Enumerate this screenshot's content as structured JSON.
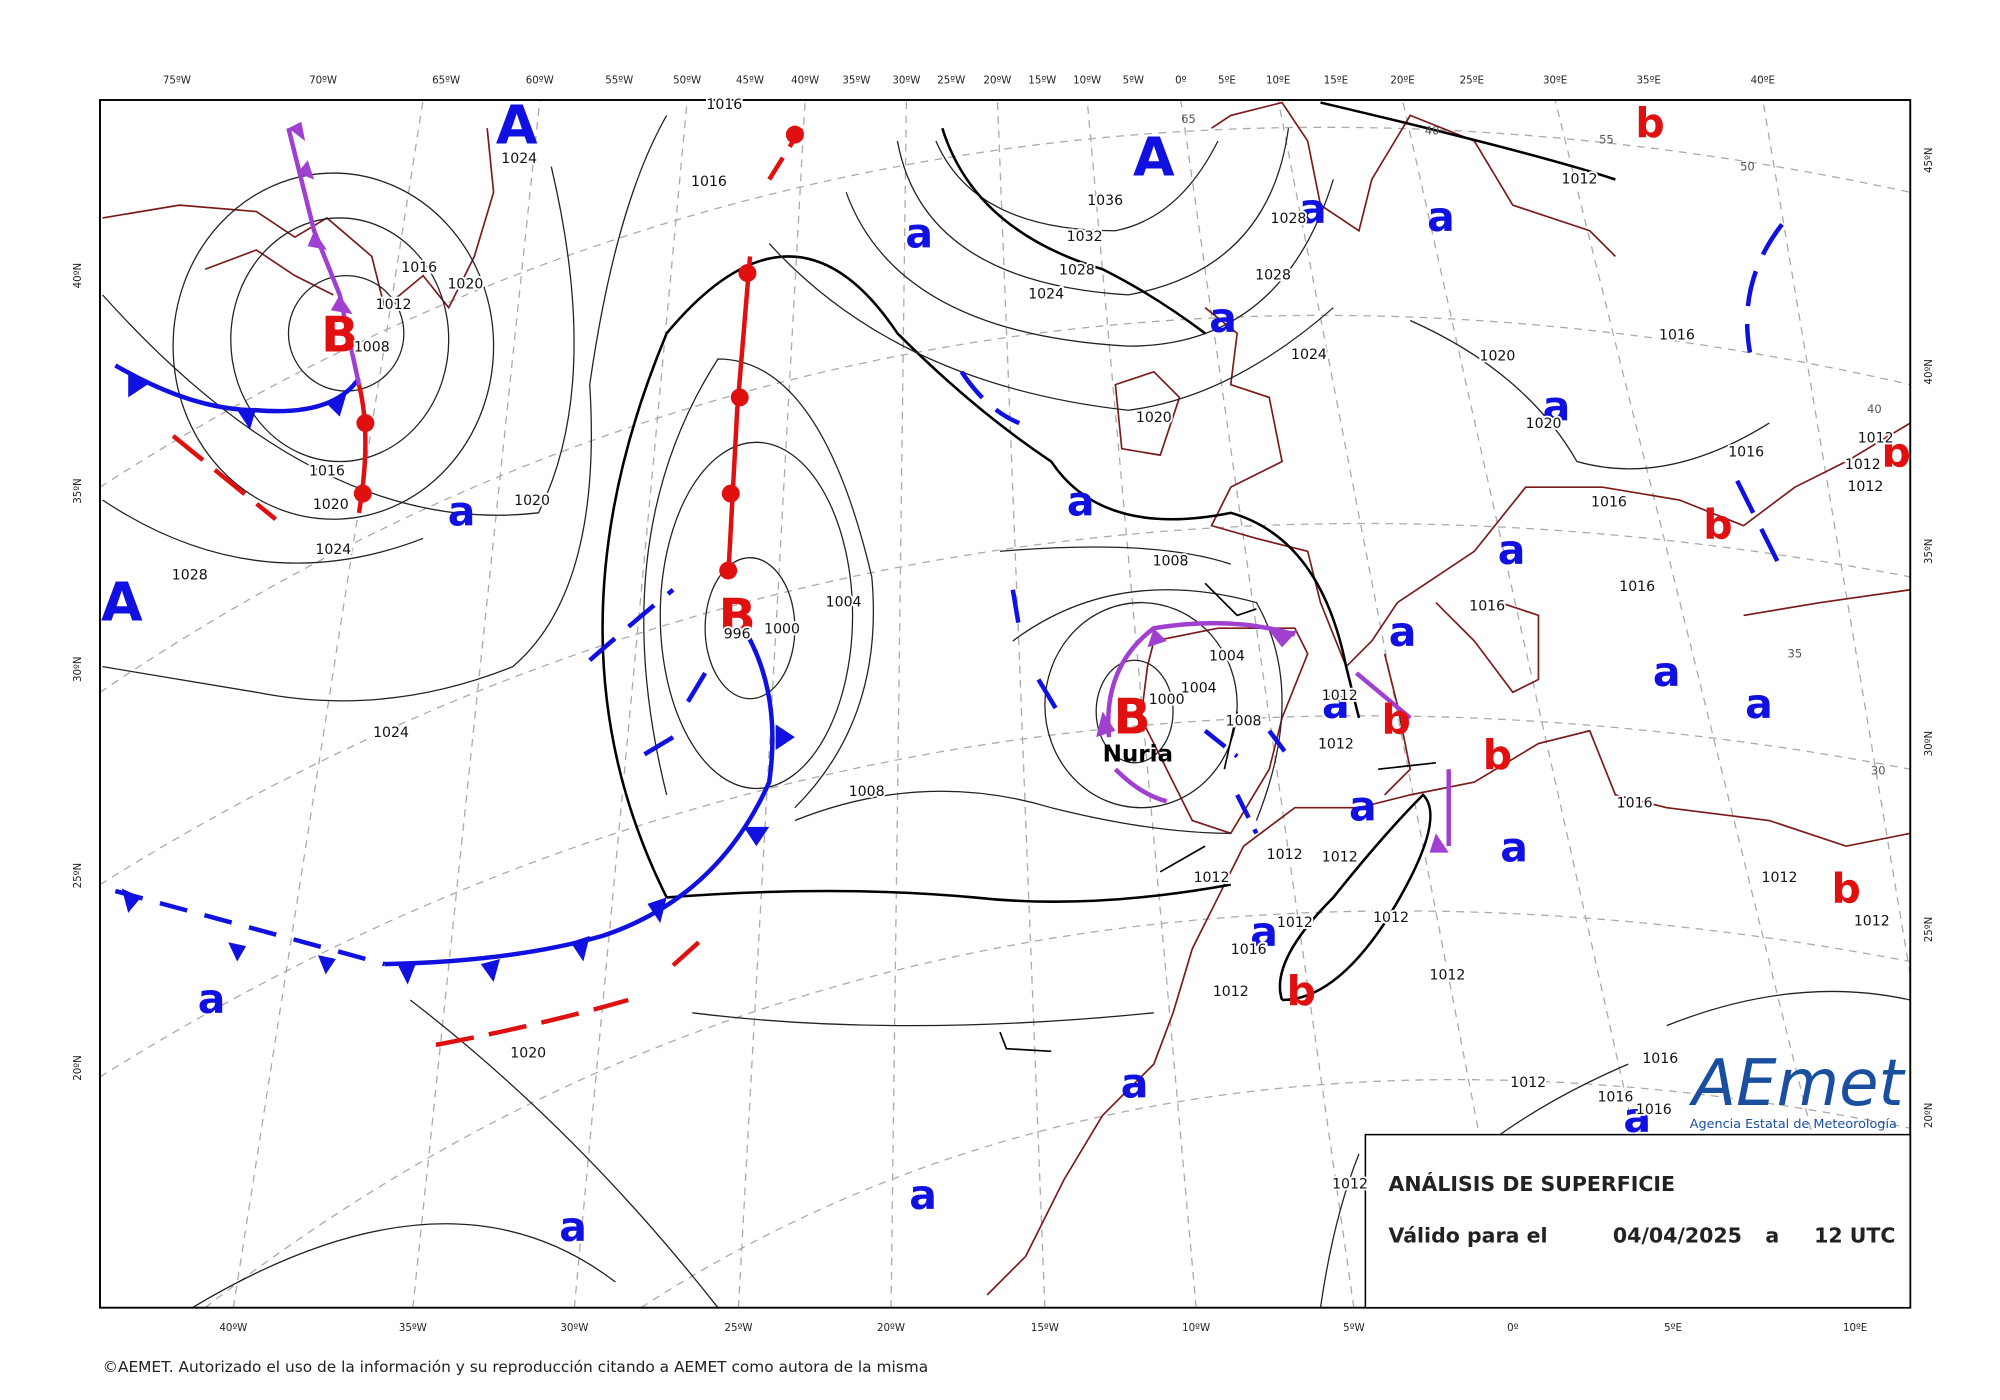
{
  "map": {
    "lon_top": [
      "75ºW",
      "70ºW",
      "65ºW",
      "60ºW",
      "55ºW",
      "50ºW",
      "45ºW",
      "40ºW",
      "35ºW",
      "30ºW",
      "25ºW",
      "20ºW",
      "15ºW",
      "10ºW",
      "5ºW",
      "0º",
      "5ºE",
      "10ºE",
      "15ºE",
      "20ºE",
      "25ºE",
      "30ºE",
      "35ºE",
      "40ºE"
    ],
    "lon_bottom": [
      "40ºW",
      "35ºW",
      "30ºW",
      "25ºW",
      "20ºW",
      "15ºW",
      "10ºW",
      "5ºW",
      "0º",
      "5ºE",
      "10ºE"
    ],
    "lat_left": [
      "40ºN",
      "35ºN",
      "30ºN",
      "25ºN",
      "20ºN"
    ],
    "lat_right": [
      "45ºN",
      "40ºN",
      "35ºN",
      "30ºN",
      "25ºN",
      "20ºN"
    ],
    "highs": [
      "A",
      "A",
      "A"
    ],
    "lows": [
      "B",
      "B",
      "B"
    ],
    "relative_highs": [
      "a",
      "a",
      "a",
      "a",
      "a",
      "a",
      "a",
      "a",
      "a",
      "a",
      "a",
      "a",
      "a",
      "a",
      "a",
      "a",
      "a",
      "a",
      "a",
      "a"
    ],
    "relative_lows": [
      "b",
      "b",
      "b",
      "b",
      "b",
      "b",
      "b"
    ],
    "storm_name": "Nuria",
    "isobar_labels": [
      1016,
      1016,
      1024,
      1016,
      1020,
      1012,
      1008,
      1016,
      1020,
      1024,
      1028,
      1020,
      1024,
      1004,
      1000,
      996,
      1008,
      1020,
      1036,
      1032,
      1028,
      1024,
      1028,
      1028,
      1024,
      1020,
      1012,
      1020,
      1020,
      1016,
      1008,
      1004,
      1004,
      1000,
      1008,
      1012,
      1012,
      1012,
      1012,
      1012,
      1012,
      1016,
      1012,
      1012,
      1012,
      1016,
      1016,
      1016,
      1016,
      1012,
      1012,
      1012,
      1016,
      1012,
      1012,
      1016,
      1012,
      1016,
      1016,
      1012
    ],
    "thickness_labels": [
      65,
      55,
      50,
      40,
      40,
      35,
      30
    ]
  },
  "legend_box": {
    "title": "ANÁLISIS DE SUPERFICIE",
    "valid_label": "Válido para el",
    "date": "04/04/2025",
    "at": "a",
    "time": "12 UTC"
  },
  "logo": {
    "name": "AEmet",
    "subtitle": "Agencia Estatal de Meteorología"
  },
  "footer": "©AEMET. Autorizado el uso de la información y su reproducción citando a AEMET como autora de la misma"
}
